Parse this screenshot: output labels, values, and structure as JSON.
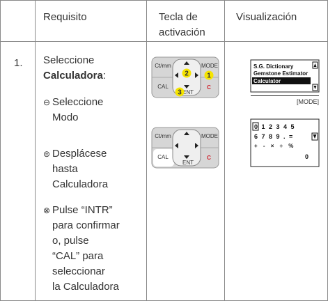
{
  "header": {
    "requirement": "Requisito",
    "key_lines": [
      "Tecla de",
      "activación"
    ],
    "display": "Visualización"
  },
  "row": {
    "number": "1.",
    "intro": "Seleccione",
    "intro_bold": "Calculadora",
    "intro_end": ":",
    "steps": [
      {
        "symbol": "⊖",
        "lines": [
          "Seleccione",
          "Modo"
        ]
      },
      {
        "symbol": "⊜",
        "lines": [
          "Desplácese",
          "hasta",
          "Calculadora"
        ]
      },
      {
        "symbol": "⊗",
        "lines": [
          "Pulse “INTR”",
          "para confirmar",
          "o, pulse",
          "“CAL” para",
          "seleccionar",
          "la Calculadora"
        ]
      }
    ],
    "keypads": [
      {
        "ctmm": "Ct/mm",
        "mode": "MODE",
        "cal": "CAL",
        "ent": "ENT",
        "clear": "C",
        "badges": [
          "2",
          "1",
          "3"
        ]
      },
      {
        "ctmm": "Ct/mm",
        "mode": "MODE",
        "cal": "CAL",
        "ent": "ENT",
        "clear": "C"
      }
    ],
    "menu_display": {
      "items": [
        "S.G. Dictionary",
        "Gemstone Estimator",
        "Calculator"
      ],
      "footer": "[MODE]"
    },
    "calc_display": {
      "rows": [
        "0 1 2 3 4 5",
        "6 7 8 9 . =",
        "+ - × ÷ %"
      ],
      "result": "0"
    }
  }
}
